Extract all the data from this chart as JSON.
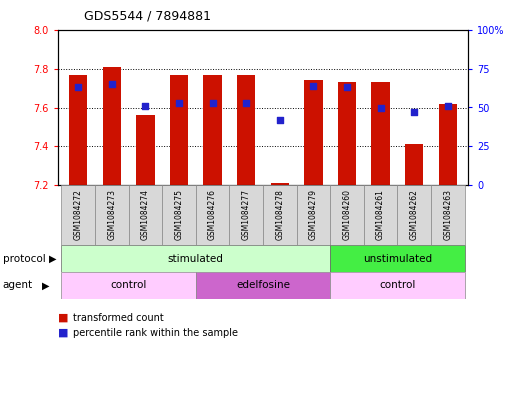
{
  "title": "GDS5544 / 7894881",
  "samples": [
    "GSM1084272",
    "GSM1084273",
    "GSM1084274",
    "GSM1084275",
    "GSM1084276",
    "GSM1084277",
    "GSM1084278",
    "GSM1084279",
    "GSM1084260",
    "GSM1084261",
    "GSM1084262",
    "GSM1084263"
  ],
  "bar_values": [
    7.77,
    7.81,
    7.56,
    7.77,
    7.77,
    7.77,
    7.21,
    7.74,
    7.73,
    7.73,
    7.41,
    7.62
  ],
  "bar_bottom": 7.2,
  "percentile_values": [
    63,
    65,
    51,
    53,
    53,
    53,
    42,
    64,
    63,
    50,
    47,
    51
  ],
  "left_ylim": [
    7.2,
    8.0
  ],
  "right_ylim": [
    0,
    100
  ],
  "left_yticks": [
    7.2,
    7.4,
    7.6,
    7.8,
    8.0
  ],
  "right_yticks": [
    0,
    25,
    50,
    75,
    100
  ],
  "right_yticklabels": [
    "0",
    "25",
    "50",
    "75",
    "100%"
  ],
  "dotted_lines": [
    7.4,
    7.6,
    7.8
  ],
  "bar_color": "#cc1100",
  "percentile_color": "#2222cc",
  "bar_width": 0.55,
  "protocol_groups": [
    {
      "label": "stimulated",
      "start": 0,
      "end": 8,
      "color": "#ccffcc"
    },
    {
      "label": "unstimulated",
      "start": 8,
      "end": 12,
      "color": "#44ee44"
    }
  ],
  "agent_groups": [
    {
      "label": "control",
      "start": 0,
      "end": 4,
      "color": "#ffccff"
    },
    {
      "label": "edelfosine",
      "start": 4,
      "end": 8,
      "color": "#cc66cc"
    },
    {
      "label": "control",
      "start": 8,
      "end": 12,
      "color": "#ffccff"
    }
  ],
  "protocol_label": "protocol",
  "agent_label": "agent",
  "legend_bar_label": "transformed count",
  "legend_pct_label": "percentile rank within the sample",
  "fig_width": 5.13,
  "fig_height": 3.93,
  "dpi": 100
}
